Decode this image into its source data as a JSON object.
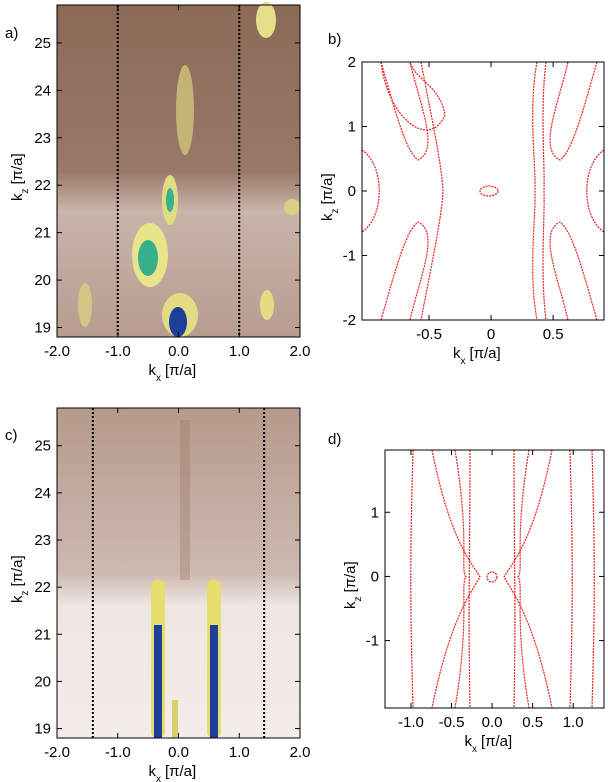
{
  "chart_data": [
    {
      "type": "heatmap",
      "panel": "a)",
      "xlabel": {
        "main": "k",
        "sub": "x",
        "unit": "[π/a]"
      },
      "ylabel": {
        "main": "k",
        "sub": "z",
        "unit": "[π/a]"
      },
      "xlim": [
        -2,
        2
      ],
      "ylim": [
        18.8,
        25.8
      ],
      "xticks": [
        {
          "value": -2,
          "label": "-2.0"
        },
        {
          "value": -1,
          "label": "-1.0"
        },
        {
          "value": 0,
          "label": "0.0"
        },
        {
          "value": 1,
          "label": "1.0"
        },
        {
          "value": 2,
          "label": "2.0"
        }
      ],
      "yticks": [
        19,
        20,
        21,
        22,
        23,
        24,
        25
      ],
      "vlines": [
        -1,
        1
      ]
    },
    {
      "type": "contour",
      "panel": "b)",
      "xlabel": {
        "main": "k",
        "sub": "x",
        "unit": "[π/a]"
      },
      "ylabel": {
        "main": "k",
        "sub": "z",
        "unit": "[π/a]"
      },
      "xlim": [
        -1.04,
        0.91
      ],
      "ylim": [
        -2,
        2
      ],
      "xticks": [
        -0.5,
        0,
        0.5
      ],
      "yticks": [
        -2,
        -1,
        0,
        1,
        2
      ],
      "color": "#e8201c"
    },
    {
      "type": "heatmap",
      "panel": "c)",
      "xlabel": {
        "main": "k",
        "sub": "x",
        "unit": "[π/a]"
      },
      "ylabel": {
        "main": "k",
        "sub": "z",
        "unit": "[π/a]"
      },
      "xlim": [
        -2,
        2
      ],
      "ylim": [
        18.8,
        25.8
      ],
      "xticks": [
        {
          "value": -2,
          "label": "-2.0"
        },
        {
          "value": -1,
          "label": "-1.0"
        },
        {
          "value": 0,
          "label": "0.0"
        },
        {
          "value": 1,
          "label": "1.0"
        },
        {
          "value": 2,
          "label": "2.0"
        }
      ],
      "yticks": [
        19,
        20,
        21,
        22,
        23,
        24,
        25
      ],
      "vlines": [
        -1.41,
        1.41
      ]
    },
    {
      "type": "contour",
      "panel": "d)",
      "xlabel": {
        "main": "k",
        "sub": "x",
        "unit": "[π/a]"
      },
      "ylabel": {
        "main": "k",
        "sub": "z",
        "unit": "[π/a]"
      },
      "xlim": [
        -1.32,
        1.38
      ],
      "ylim": [
        -2.05,
        1.97
      ],
      "xticks": [
        {
          "value": -1,
          "label": "-1.0"
        },
        {
          "value": -0.5,
          "label": "-0.5"
        },
        {
          "value": 0,
          "label": "0.0"
        },
        {
          "value": 0.5,
          "label": "0.5"
        },
        {
          "value": 1,
          "label": "1.0"
        }
      ],
      "yticks": [
        -1,
        0,
        1
      ],
      "color": "#e8201c"
    }
  ]
}
